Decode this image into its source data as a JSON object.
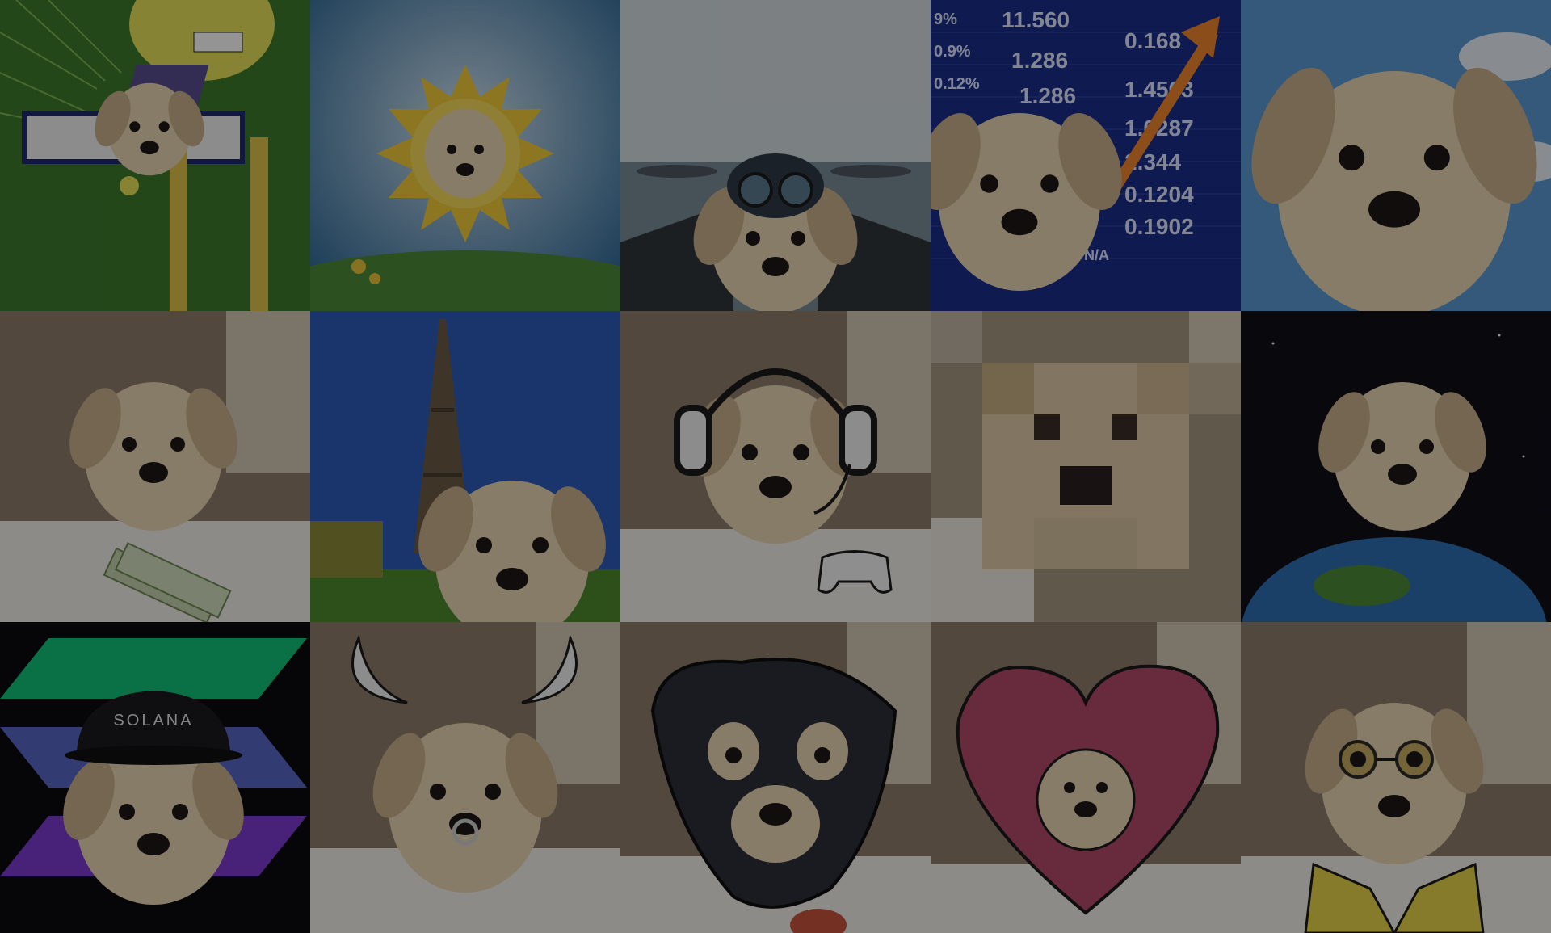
{
  "gallery": {
    "tiles": [
      {
        "name": "tile-spongebob-box"
      },
      {
        "name": "tile-sun"
      },
      {
        "name": "tile-pilot"
      },
      {
        "name": "tile-stock-ticker",
        "ticker": [
          "11.560",
          "1.286",
          "1.286",
          "0.168",
          "1.4563",
          "1.0287",
          "2.344",
          "0.1204",
          "0.1902",
          "9%",
          "0.9%",
          "0.12%",
          "N/A"
        ]
      },
      {
        "name": "tile-sky"
      },
      {
        "name": "tile-money"
      },
      {
        "name": "tile-eiffel-tower"
      },
      {
        "name": "tile-gamer-headset"
      },
      {
        "name": "tile-pixelated"
      },
      {
        "name": "tile-earth"
      },
      {
        "name": "tile-solana-cap",
        "cap_text": "SOLANA"
      },
      {
        "name": "tile-horns"
      },
      {
        "name": "tile-ski-mask"
      },
      {
        "name": "tile-heart"
      },
      {
        "name": "tile-glasses"
      }
    ]
  },
  "colors": {
    "puppy_fur": "#e8d6b4",
    "puppy_shadow": "#c9b08a",
    "nose": "#1c1716",
    "overlay": "rgba(0,0,0,0.42)",
    "solana_green": "#14f195",
    "solana_purple": "#9945ff",
    "heart": "#b34a6b",
    "ticker_blue": "#1a2e8a"
  },
  "icons": [
    "headset-icon",
    "gamepad-icon",
    "cap-icon",
    "horns-icon",
    "nose-ring-icon",
    "ski-mask-icon",
    "heart-icon",
    "glasses-icon",
    "arrow-up-icon",
    "sun-icon",
    "helmet-icon",
    "money-icon",
    "globe-icon",
    "tower-icon"
  ]
}
